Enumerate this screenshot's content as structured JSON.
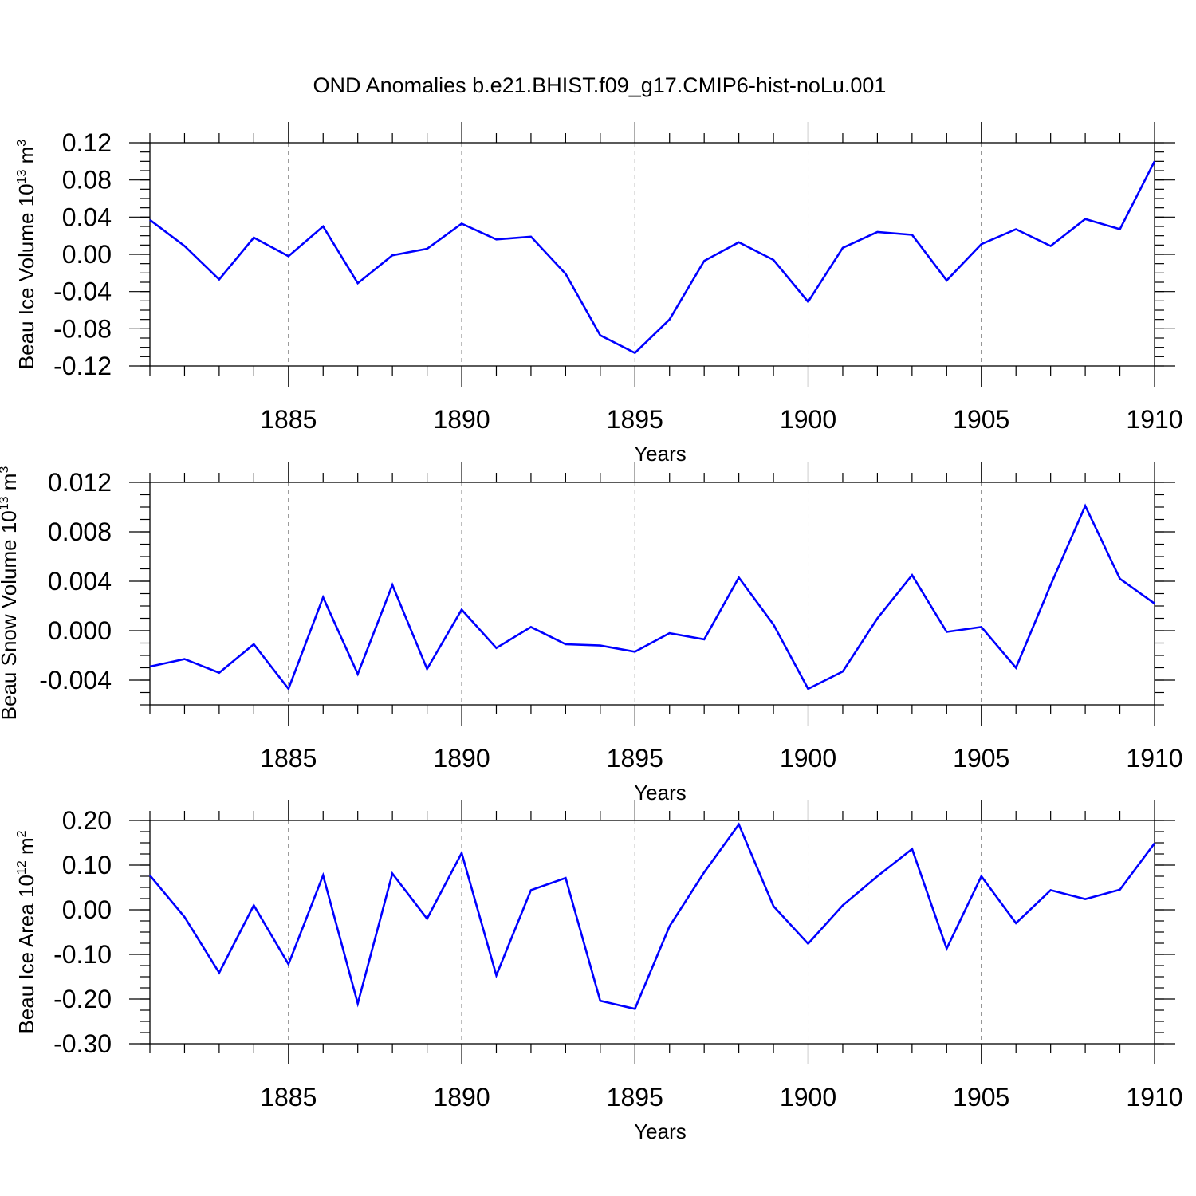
{
  "title": "OND Anomalies b.e21.BHIST.f09_g17.CMIP6-hist-noLu.001",
  "colors": {
    "line": "#0000ff",
    "axis": "#000000",
    "grid": "#000000"
  },
  "chart_data": [
    {
      "type": "line",
      "xlabel": "Years",
      "ylabel": {
        "text": "Beau Ice Volume 10",
        "sup": "13",
        "unit": " m",
        "unit_sup": "3"
      },
      "xlim": [
        1881,
        1910
      ],
      "ylim": [
        -0.12,
        0.12
      ],
      "xticks": [
        "1885",
        "1890",
        "1895",
        "1900",
        "1905",
        "1910"
      ],
      "yticks": [
        "0.12",
        "0.08",
        "0.04",
        "0.00",
        "-0.04",
        "-0.08",
        "-0.12"
      ],
      "grid": "vertical dashed at major x ticks",
      "series": [
        {
          "name": "Beau Ice Volume",
          "x": [
            1881,
            1882,
            1883,
            1884,
            1885,
            1886,
            1887,
            1888,
            1889,
            1890,
            1891,
            1892,
            1893,
            1894,
            1895,
            1896,
            1897,
            1898,
            1899,
            1900,
            1901,
            1902,
            1903,
            1904,
            1905,
            1906,
            1907,
            1908,
            1909,
            1910
          ],
          "values": [
            0.037,
            0.009,
            -0.027,
            0.018,
            -0.002,
            0.03,
            -0.031,
            -0.001,
            0.006,
            0.033,
            0.016,
            0.019,
            -0.021,
            -0.087,
            -0.106,
            -0.07,
            -0.007,
            0.013,
            -0.006,
            -0.051,
            0.007,
            0.024,
            0.021,
            -0.028,
            0.011,
            0.027,
            0.009,
            0.038,
            0.027,
            0.1
          ]
        }
      ]
    },
    {
      "type": "line",
      "xlabel": "Years",
      "ylabel": {
        "text": "Beau Snow Volume 10",
        "sup": "13",
        "unit": " m",
        "unit_sup": "3"
      },
      "xlim": [
        1881,
        1910
      ],
      "ylim": [
        -0.006,
        0.012
      ],
      "xticks": [
        "1885",
        "1890",
        "1895",
        "1900",
        "1905",
        "1910"
      ],
      "yticks": [
        "0.012",
        "0.008",
        "0.004",
        "0.000",
        "-0.004"
      ],
      "grid": "vertical dashed at major x ticks",
      "series": [
        {
          "name": "Beau Snow Volume",
          "x": [
            1881,
            1882,
            1883,
            1884,
            1885,
            1886,
            1887,
            1888,
            1889,
            1890,
            1891,
            1892,
            1893,
            1894,
            1895,
            1896,
            1897,
            1898,
            1899,
            1900,
            1901,
            1902,
            1903,
            1904,
            1905,
            1906,
            1907,
            1908,
            1909,
            1910
          ],
          "values": [
            -0.0029,
            -0.0023,
            -0.0034,
            -0.0011,
            -0.0047,
            0.0027,
            -0.0035,
            0.0037,
            -0.0031,
            0.0017,
            -0.0014,
            0.0003,
            -0.0011,
            -0.0012,
            -0.0017,
            -0.0002,
            -0.0007,
            0.0043,
            0.0005,
            -0.0047,
            -0.0033,
            0.001,
            0.0045,
            -0.0001,
            0.0003,
            -0.003,
            0.0037,
            0.0101,
            0.0042,
            0.0022
          ]
        }
      ]
    },
    {
      "type": "line",
      "xlabel": "Years",
      "ylabel": {
        "text": "Beau Ice Area 10",
        "sup": "12",
        "unit": " m",
        "unit_sup": "2"
      },
      "xlim": [
        1881,
        1910
      ],
      "ylim": [
        -0.3,
        0.2
      ],
      "xticks": [
        "1885",
        "1890",
        "1895",
        "1900",
        "1905",
        "1910"
      ],
      "yticks": [
        "0.20",
        "0.10",
        "0.00",
        "-0.10",
        "-0.20",
        "-0.30"
      ],
      "grid": "vertical dashed at major x ticks",
      "series": [
        {
          "name": "Beau Ice Area",
          "x": [
            1881,
            1882,
            1883,
            1884,
            1885,
            1886,
            1887,
            1888,
            1889,
            1890,
            1891,
            1892,
            1893,
            1894,
            1895,
            1896,
            1897,
            1898,
            1899,
            1900,
            1901,
            1902,
            1903,
            1904,
            1905,
            1906,
            1907,
            1908,
            1909,
            1910
          ],
          "values": [
            0.077,
            -0.016,
            -0.141,
            0.01,
            -0.122,
            0.077,
            -0.21,
            0.081,
            -0.02,
            0.127,
            -0.147,
            0.044,
            0.071,
            -0.204,
            -0.222,
            -0.037,
            0.084,
            0.191,
            0.008,
            -0.076,
            0.01,
            0.075,
            0.136,
            -0.087,
            0.075,
            -0.03,
            0.044,
            0.024,
            0.045,
            0.149
          ]
        }
      ]
    }
  ]
}
